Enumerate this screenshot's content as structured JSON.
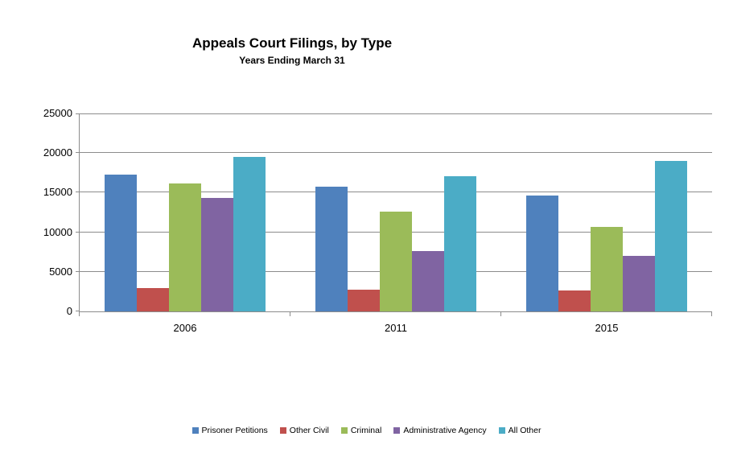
{
  "chart": {
    "title": "Appeals Court Filings, by Type",
    "subtitle": "Years Ending March 31"
  },
  "chart_data": {
    "type": "bar",
    "title": "Appeals Court Filings, by Type",
    "subtitle": "Years Ending March 31",
    "categories": [
      "2006",
      "2011",
      "2015"
    ],
    "series": [
      {
        "name": "Prisoner Petitions",
        "color": "#4F81BD",
        "values": [
          17300,
          15800,
          14600
        ]
      },
      {
        "name": "Other Civil",
        "color": "#C0504D",
        "values": [
          2950,
          2775,
          2675
        ]
      },
      {
        "name": "Criminal",
        "color": "#9BBB59",
        "values": [
          16150,
          12600,
          10650
        ]
      },
      {
        "name": "Administrative Agency",
        "color": "#8064A2",
        "values": [
          14300,
          7600,
          7050
        ]
      },
      {
        "name": "All Other",
        "color": "#4BACC6",
        "values": [
          19500,
          17050,
          19050
        ]
      }
    ],
    "xlabel": "",
    "ylabel": "",
    "ylim": [
      0,
      25000
    ],
    "yticks": [
      0,
      5000,
      10000,
      15000,
      20000,
      25000
    ],
    "grid": true,
    "legend_position": "bottom",
    "axis_color": "#8C8C8C",
    "gridline_color": "#8C8C8C",
    "background_color": "#FFFFFF"
  }
}
